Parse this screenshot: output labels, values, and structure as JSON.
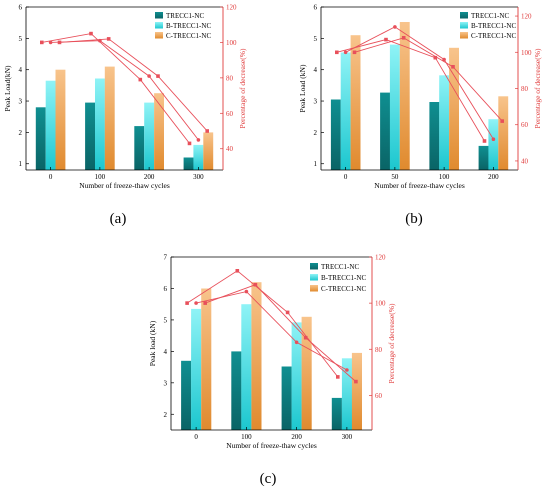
{
  "figure": {
    "panel_labels": [
      "(a)",
      "(b)",
      "(c)"
    ]
  },
  "colors": {
    "s0_top": "#0f8f91",
    "s0_bot": "#0a6466",
    "s1_top": "#8ff3f6",
    "s1_bot": "#1cc7cf",
    "s2_top": "#f8c48c",
    "s2_bot": "#e08a2e",
    "line": "#e8505b",
    "axis": "#000000",
    "right_axis": "#e03c3c"
  },
  "chart_data": [
    {
      "type": "bar",
      "panel": "(a)",
      "categories": [
        "0",
        "100",
        "200",
        "300"
      ],
      "series": [
        {
          "name": "TRECC1-NC",
          "values": [
            2.8,
            2.95,
            2.2,
            1.2
          ]
        },
        {
          "name": "B-TRECC1-NC",
          "values": [
            3.65,
            3.72,
            2.95,
            1.6
          ]
        },
        {
          "name": "C-TRECC1-NC",
          "values": [
            4.0,
            4.1,
            3.25,
            2.0
          ]
        }
      ],
      "line_series": [
        {
          "name": "TRECC1-NC",
          "values": [
            100,
            105,
            79,
            43
          ]
        },
        {
          "name": "B-TRECC1-NC",
          "values": [
            100,
            101,
            81,
            45
          ]
        },
        {
          "name": "C-TRECC1-NC",
          "values": [
            100,
            102,
            81,
            50
          ]
        }
      ],
      "xlabel": "Number of freeze-thaw cycles",
      "ylabel": "Peak Load(kN)",
      "y2label": "Percentage of decrease(%)",
      "ylim": [
        0.8,
        6
      ],
      "y2lim": [
        28,
        120
      ],
      "yticks": [
        "1",
        "2",
        "3",
        "4",
        "5",
        "6"
      ],
      "y2ticks": [
        "40",
        "60",
        "80",
        "100",
        "120"
      ],
      "legend": "top-right",
      "grid": false
    },
    {
      "type": "bar",
      "panel": "(b)",
      "categories": [
        "0",
        "50",
        "100",
        "200"
      ],
      "series": [
        {
          "name": "TRECC1-NC",
          "values": [
            3.05,
            3.27,
            2.97,
            1.57
          ]
        },
        {
          "name": "B-TRECC1-NC",
          "values": [
            4.55,
            4.8,
            3.82,
            2.42
          ]
        },
        {
          "name": "C-TRECC1-NC",
          "values": [
            5.1,
            5.52,
            4.7,
            3.15
          ]
        }
      ],
      "line_series": [
        {
          "name": "TRECC1-NC",
          "values": [
            100,
            107,
            97,
            51
          ]
        },
        {
          "name": "B-TRECC1-NC",
          "values": [
            100,
            114,
            96,
            52
          ]
        },
        {
          "name": "C-TRECC1-NC",
          "values": [
            100,
            108,
            92,
            62
          ]
        }
      ],
      "xlabel": "Number of freeze-thaw cycles",
      "ylabel": "Peak Load (kN)",
      "y2label": "Percentage of decrease(%)",
      "ylim": [
        0.8,
        6
      ],
      "y2lim": [
        35,
        125
      ],
      "yticks": [
        "1",
        "2",
        "3",
        "4",
        "5",
        "6"
      ],
      "y2ticks": [
        "40",
        "60",
        "80",
        "100",
        "120"
      ],
      "legend": "top-right",
      "grid": false
    },
    {
      "type": "bar",
      "panel": "(c)",
      "categories": [
        "0",
        "100",
        "200",
        "300"
      ],
      "series": [
        {
          "name": "TRECC1-NC",
          "values": [
            3.7,
            4.0,
            3.52,
            2.52
          ]
        },
        {
          "name": "B-TRECC1-NC",
          "values": [
            5.35,
            5.5,
            4.92,
            3.78
          ]
        },
        {
          "name": "C-TRECC1-NC",
          "values": [
            6.0,
            6.2,
            5.1,
            3.95
          ]
        }
      ],
      "line_series": [
        {
          "name": "TRECC1-NC",
          "values": [
            100,
            114,
            96,
            68
          ]
        },
        {
          "name": "B-TRECC1-NC",
          "values": [
            100,
            105,
            83,
            71
          ]
        },
        {
          "name": "C-TRECC1-NC",
          "values": [
            100,
            108,
            85,
            66
          ]
        }
      ],
      "xlabel": "Number of freeze-thaw cycles",
      "ylabel": "Peak load (kN)",
      "y2label": "Percentage of decrease(%)",
      "ylim": [
        1.5,
        7
      ],
      "y2lim": [
        45,
        120
      ],
      "yticks": [
        "2",
        "3",
        "4",
        "5",
        "6",
        "7"
      ],
      "y2ticks": [
        "60",
        "80",
        "100",
        "120"
      ],
      "legend": "top-right",
      "grid": false
    }
  ]
}
